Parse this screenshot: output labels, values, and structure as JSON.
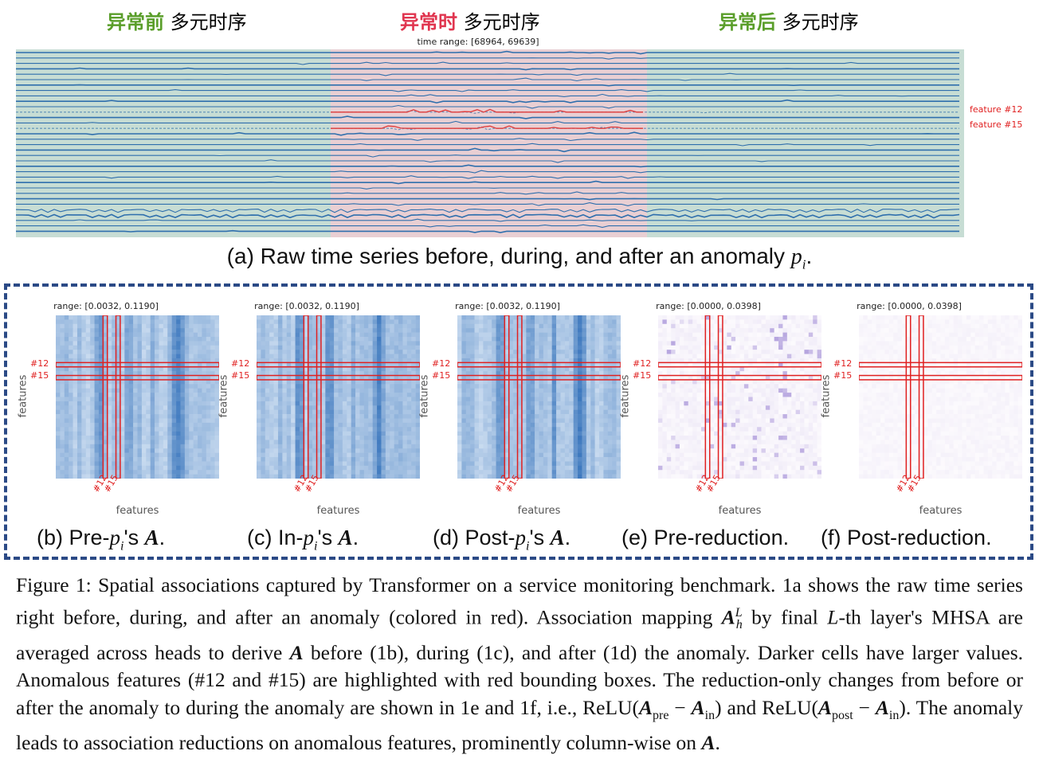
{
  "top_labels": [
    {
      "bold": "异常前",
      "rest": " 多元时序",
      "color": "#5a9e2a"
    },
    {
      "bold": "异常时",
      "rest": " 多元时序",
      "color": "#e0354f"
    },
    {
      "bold": "异常后",
      "rest": " 多元时序",
      "color": "#5a9e2a"
    }
  ],
  "time_range": "time range: [68964, 69639]",
  "feature_labels": [
    "feature #12",
    "feature #15"
  ],
  "caption_a": "(a) Raw time series before, during, and after an anomaly p_i.",
  "caption_a_parts": {
    "text": "(a) Raw time series before, during, and after an anomaly ",
    "var": "p",
    "sub": "i",
    "end": "."
  },
  "panels": [
    {
      "range": "range: [0.0032, 0.1190]",
      "ylabel": "features",
      "xlabel": "features",
      "f12": "#12",
      "f15": "#15",
      "palette": "blue"
    },
    {
      "range": "range: [0.0032, 0.1190]",
      "ylabel": "features",
      "xlabel": "features",
      "f12": "#12",
      "f15": "#15",
      "palette": "blue"
    },
    {
      "range": "range: [0.0032, 0.1190]",
      "ylabel": "features",
      "xlabel": "features",
      "f12": "#12",
      "f15": "#15",
      "palette": "blue"
    },
    {
      "range": "range: [0.0000, 0.0398]",
      "ylabel": "features",
      "xlabel": "features",
      "f12": "#12",
      "f15": "#15",
      "palette": "purple"
    },
    {
      "range": "range: [0.0000, 0.0398]",
      "ylabel": "features",
      "xlabel": "features",
      "f12": "#12",
      "f15": "#15",
      "palette": "faint"
    }
  ],
  "subcaptions": {
    "b": {
      "pre": "(b) Pre-",
      "var": "p",
      "sub": "i",
      "post": "'s ",
      "mat": "A",
      "end": "."
    },
    "c": {
      "pre": "(c) In-",
      "var": "p",
      "sub": "i",
      "post": "'s ",
      "mat": "A",
      "end": "."
    },
    "d": {
      "pre": "(d) Post-",
      "var": "p",
      "sub": "i",
      "post": "'s ",
      "mat": "A",
      "end": "."
    },
    "e": "(e) Pre-reduction.",
    "f": "(f) Post-reduction."
  },
  "figure_caption": {
    "s1": "Figure 1: Spatial associations captured by Transformer on a service monitoring benchmark. 1a shows the raw time series right before, during, and after an anomaly (colored in red). Association mapping ",
    "m1": "A",
    "m1sup": "L",
    "m1sub": "h",
    "s2": " by final ",
    "m2": "L",
    "s3": "-th layer's MHSA are averaged across heads to derive ",
    "m3": "A",
    "s4": " before (1b), during (1c), and after (1d) the anomaly. Darker cells have larger values. Anomalous features (#12 and #15) are highlighted with red bounding boxes. The reduction-only changes from before or after the anomaly to during the anomaly are shown in 1e and 1f, i.e., ReLU(",
    "m4": "A",
    "m4sub": "pre",
    "s5": " − ",
    "m5": "A",
    "m5sub": "in",
    "s6": ") and ReLU(",
    "m6": "A",
    "m6sub": "post",
    "s7": " − ",
    "m7": "A",
    "m7sub": "in",
    "s8": "). The anomaly leads to association reductions on anomalous features, prominently column-wise on ",
    "m8": "A",
    "s9": "."
  },
  "colors": {
    "green_bg": "#c7ddd4",
    "red_bg": "#e9cfd3",
    "line": "#2f6fad",
    "anomaly_line": "#e03a3a",
    "dash": "#2b4a86"
  }
}
